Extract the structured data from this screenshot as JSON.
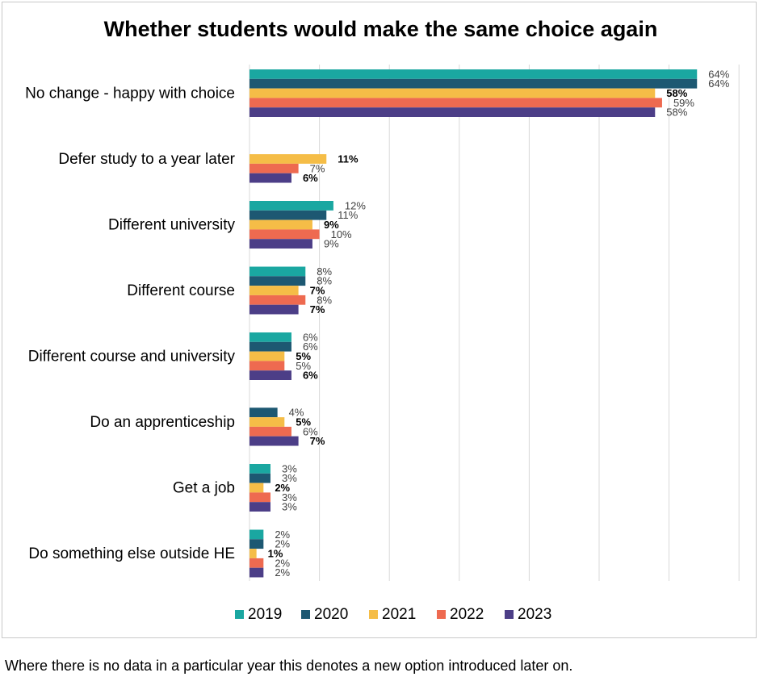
{
  "chart_data": {
    "type": "bar",
    "orientation": "horizontal",
    "title": "Whether students would make the same choice again",
    "categories": [
      "No change - happy with choice",
      "Defer study to a year later",
      "Different university",
      "Different course",
      "Different course and university",
      "Do an apprenticeship",
      "Get a job",
      "Do something else outside HE"
    ],
    "series": [
      {
        "name": "2019",
        "color": "#1aa7a1",
        "values": [
          64,
          null,
          12,
          8,
          6,
          null,
          3,
          2
        ],
        "labels": [
          "64%",
          "",
          "12%",
          "8%",
          "6%",
          "",
          "3%",
          "2%"
        ]
      },
      {
        "name": "2020",
        "color": "#1d5872",
        "values": [
          64,
          null,
          11,
          8,
          6,
          4,
          3,
          2
        ],
        "labels": [
          "64%",
          "",
          "11%",
          "8%",
          "6%",
          "4%",
          "3%",
          "2%"
        ]
      },
      {
        "name": "2021",
        "color": "#f5bd47",
        "values": [
          58,
          11,
          9,
          7,
          5,
          5,
          2,
          1
        ],
        "labels": [
          "58%",
          "11%",
          "9%",
          "7%",
          "5%",
          "5%",
          "2%",
          "1%"
        ]
      },
      {
        "name": "2022",
        "color": "#ee6a50",
        "values": [
          59,
          7,
          10,
          8,
          5,
          6,
          3,
          2
        ],
        "labels": [
          "59%",
          "7%",
          "10%",
          "8%",
          "5%",
          "6%",
          "3%",
          "2%"
        ]
      },
      {
        "name": "2023",
        "color": "#4c3e87",
        "values": [
          58,
          6,
          9,
          7,
          6,
          7,
          3,
          2
        ],
        "labels": [
          "58%",
          "6%",
          "9%",
          "7%",
          "6%",
          "7%",
          "3%",
          "2%"
        ]
      }
    ],
    "bold_labels": {
      "2021": true,
      "2023_categories": [
        1,
        3,
        4,
        5
      ]
    },
    "xlim": [
      0,
      70
    ],
    "grid": true,
    "legend": "bottom",
    "footnote": "Where there is no data in a particular year this denotes a new option introduced later on."
  }
}
